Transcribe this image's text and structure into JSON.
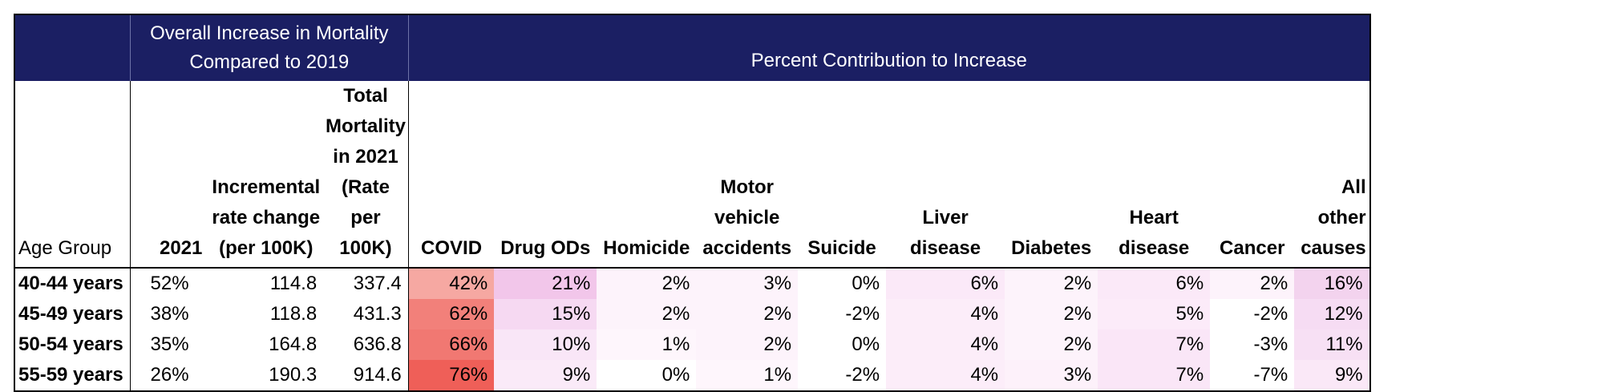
{
  "band": {
    "left_title": "Overall Increase in Mortality Compared to 2019",
    "right_title": "Percent Contribution to Increase"
  },
  "columns": {
    "age_group": "Age Group",
    "y2021": "2021",
    "incremental": "Incremental rate change (per 100K)",
    "total": "Total Mortality in 2021 (Rate per 100K)",
    "causes": [
      "COVID",
      "Drug ODs",
      "Homicide",
      "Motor vehicle accidents",
      "Suicide",
      "Liver disease",
      "Diabetes",
      "Heart disease",
      "Cancer",
      "All other causes"
    ]
  },
  "rows": [
    {
      "age": "40-44 years",
      "pct": "52%",
      "inc": "114.8",
      "total": "337.4",
      "causes": [
        "42%",
        "21%",
        "2%",
        "3%",
        "0%",
        "6%",
        "2%",
        "6%",
        "2%",
        "16%"
      ]
    },
    {
      "age": "45-49 years",
      "pct": "38%",
      "inc": "118.8",
      "total": "431.3",
      "causes": [
        "62%",
        "15%",
        "2%",
        "2%",
        "-2%",
        "4%",
        "2%",
        "5%",
        "-2%",
        "12%"
      ]
    },
    {
      "age": "50-54 years",
      "pct": "35%",
      "inc": "164.8",
      "total": "636.8",
      "causes": [
        "66%",
        "10%",
        "1%",
        "2%",
        "0%",
        "4%",
        "2%",
        "7%",
        "-3%",
        "11%"
      ]
    },
    {
      "age": "55-59 years",
      "pct": "26%",
      "inc": "190.3",
      "total": "914.6",
      "causes": [
        "76%",
        "9%",
        "0%",
        "1%",
        "-2%",
        "4%",
        "3%",
        "7%",
        "-7%",
        "9%"
      ]
    }
  ],
  "heat_colors": {
    "covid": [
      "#f6a8a2",
      "#f2807a",
      "#f17872",
      "#ef5f58"
    ],
    "drug": [
      "#f2c6ea",
      "#f6d9f2",
      "#f9e6f7",
      "#faeaf8"
    ],
    "other": [
      "#f3d3ee",
      "#f6dcf3",
      "#f7e0f4",
      "#f8e6f6"
    ],
    "light": "#fdf3fb",
    "white": "#ffffff"
  }
}
